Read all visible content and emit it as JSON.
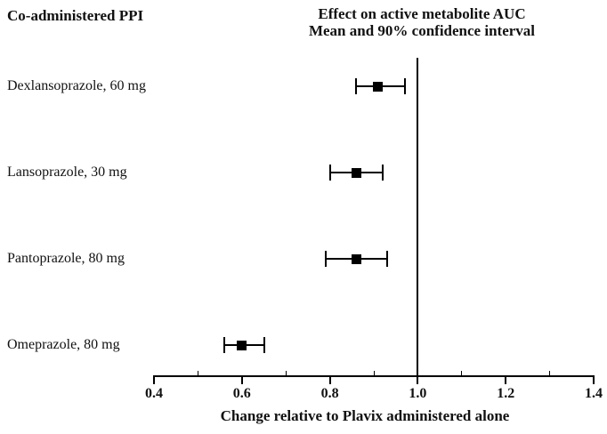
{
  "chart_data": {
    "type": "scatter",
    "subtype": "forest-plot",
    "title": "Effect on active metabolite AUC",
    "subtitle": "Mean and 90% confidence interval",
    "left_column_header": "Co-administered PPI",
    "xlabel": "Change relative to Plavix administered alone",
    "xlim": [
      0.4,
      1.4
    ],
    "x_major_ticks": [
      0.4,
      0.6,
      0.8,
      1.0,
      1.2,
      1.4
    ],
    "x_major_tick_labels": [
      "0.4",
      "0.6",
      "0.8",
      "1.0",
      "1.2",
      "1.4"
    ],
    "x_minor_ticks": [
      0.5,
      0.7,
      0.9,
      1.1,
      1.3
    ],
    "reference_line_x": 1.0,
    "rows": [
      {
        "label": "Dexlansoprazole, 60 mg",
        "mean": 0.91,
        "ci_low": 0.86,
        "ci_high": 0.97
      },
      {
        "label": "Lansoprazole, 30 mg",
        "mean": 0.86,
        "ci_low": 0.8,
        "ci_high": 0.92
      },
      {
        "label": "Pantoprazole, 80 mg",
        "mean": 0.86,
        "ci_low": 0.79,
        "ci_high": 0.93
      },
      {
        "label": "Omeprazole, 80 mg",
        "mean": 0.6,
        "ci_low": 0.56,
        "ci_high": 0.65
      }
    ],
    "marker": "filled-square",
    "grid": false,
    "legend": false,
    "colors": {
      "foreground": "#000000",
      "background": "#ffffff"
    }
  }
}
